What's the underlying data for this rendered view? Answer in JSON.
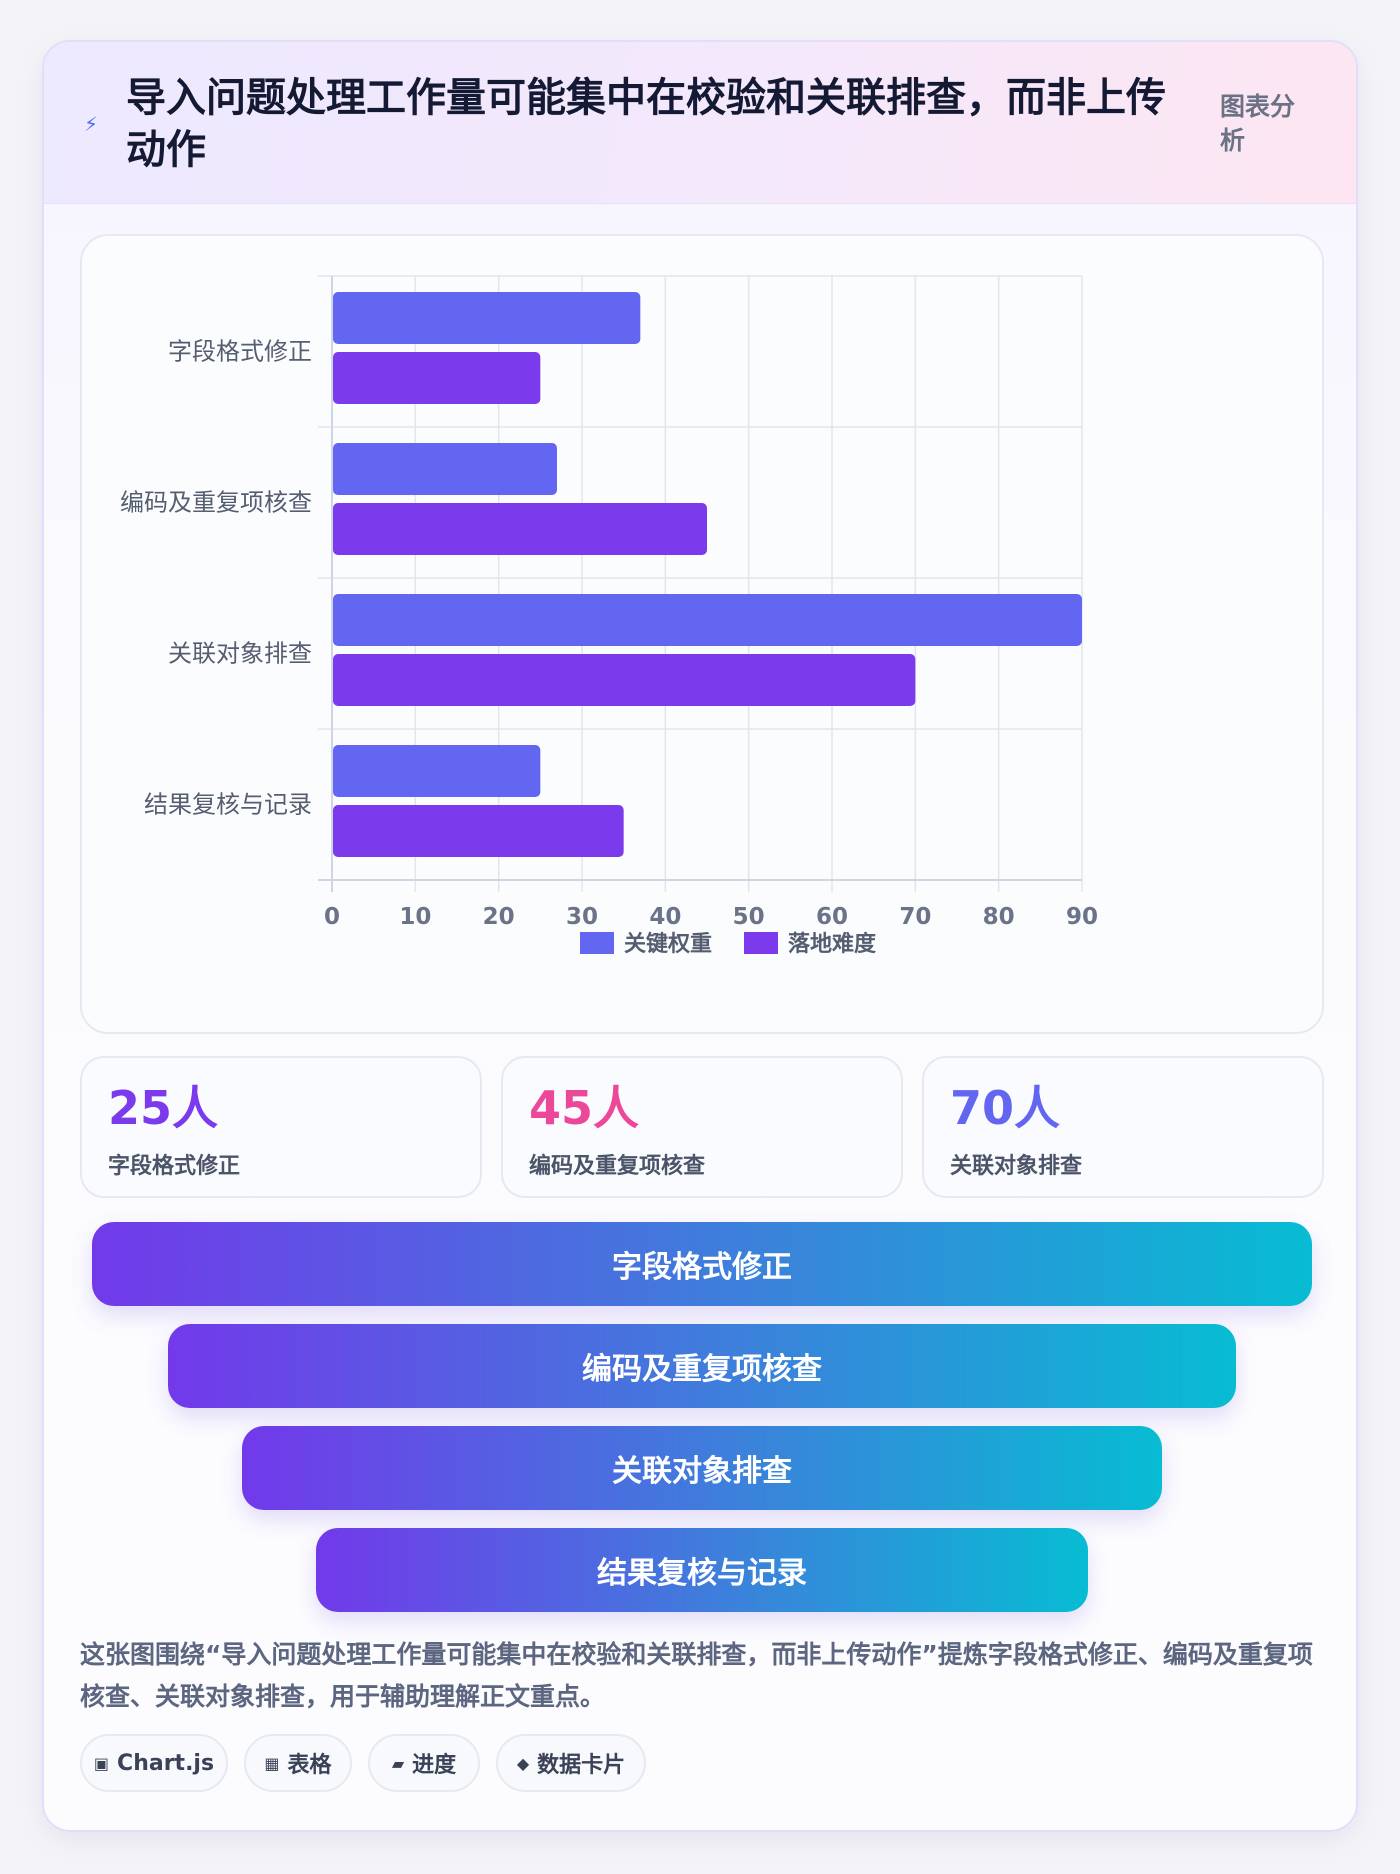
{
  "header": {
    "icon": "lightning-icon",
    "title": "导入问题处理工作量可能集中在校验和关联排查，而非上传动作",
    "tag": "图表分析"
  },
  "chart_data": {
    "type": "bar",
    "orientation": "horizontal",
    "categories": [
      "字段格式修正",
      "编码及重复项核查",
      "关联对象排查",
      "结果复核与记录"
    ],
    "series": [
      {
        "name": "关键权重",
        "values": [
          37,
          27,
          90,
          25
        ],
        "color": "#6366f1"
      },
      {
        "name": "落地难度",
        "values": [
          25,
          45,
          70,
          35
        ],
        "color": "#7c3aed"
      }
    ],
    "xlim": [
      0,
      90
    ],
    "xticks": [
      "0",
      "10",
      "20",
      "30",
      "40",
      "50",
      "60",
      "70",
      "80",
      "90"
    ],
    "grid": true,
    "legend_position": "bottom"
  },
  "stats": [
    {
      "value": "25人",
      "label": "字段格式修正",
      "color": "#7c3aed"
    },
    {
      "value": "45人",
      "label": "编码及重复项核查",
      "color": "#ec4899"
    },
    {
      "value": "70人",
      "label": "关联对象排查",
      "color": "#6366f1"
    }
  ],
  "funnel": [
    {
      "label": "字段格式修正"
    },
    {
      "label": "编码及重复项核查"
    },
    {
      "label": "关联对象排查"
    },
    {
      "label": "结果复核与记录"
    }
  ],
  "description": "这张图围绕“导入问题处理工作量可能集中在校验和关联排查，而非上传动作”提炼字段格式修正、编码及重复项核查、关联对象排查，用于辅助理解正文重点。",
  "chips": [
    {
      "icon": "▣",
      "label": "Chart.js"
    },
    {
      "icon": "▦",
      "label": "表格"
    },
    {
      "icon": "▰",
      "label": "进度"
    },
    {
      "icon": "◆",
      "label": "数据卡片"
    }
  ]
}
